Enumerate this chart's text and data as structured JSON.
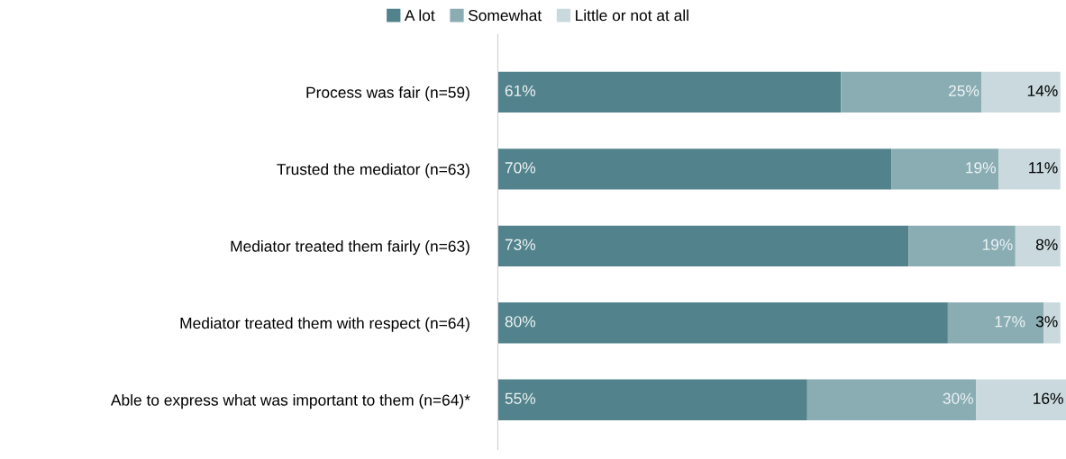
{
  "chart_data": {
    "type": "bar",
    "orientation": "horizontal",
    "stacked": true,
    "categories": [
      "Process was fair (n=59)",
      "Trusted the mediator (n=63)",
      "Mediator treated them fairly (n=63)",
      "Mediator treated them with respect (n=64)",
      "Able to express what was important to them (n=64)*"
    ],
    "series": [
      {
        "name": "A lot",
        "color": "#52838c",
        "values": [
          61,
          70,
          73,
          80,
          55
        ],
        "value_labels": [
          "61%",
          "70%",
          "73%",
          "80%",
          "55%"
        ]
      },
      {
        "name": "Somewhat",
        "color": "#8aadb4",
        "values": [
          25,
          19,
          19,
          17,
          30
        ],
        "value_labels": [
          "25%",
          "19%",
          "19%",
          "17%",
          "30%"
        ]
      },
      {
        "name": "Little or not at all",
        "color": "#c9d9dd",
        "values": [
          14,
          11,
          8,
          3,
          16
        ],
        "value_labels": [
          "14%",
          "11%",
          "8%",
          "3%",
          "16%"
        ]
      }
    ],
    "xlim": [
      0,
      101
    ],
    "tick_labels": "y",
    "grid": false,
    "legend": "top"
  }
}
